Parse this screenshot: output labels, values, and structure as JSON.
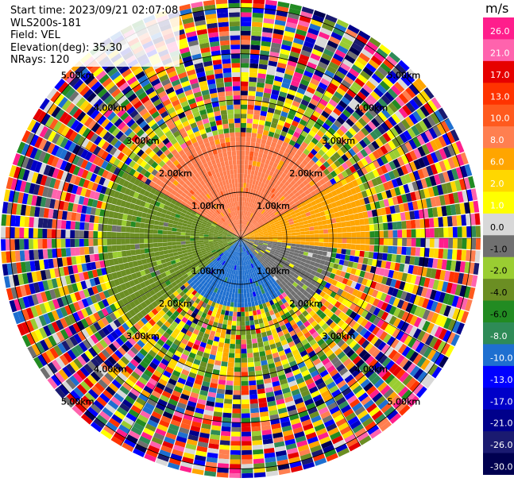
{
  "info": {
    "start_time": "Start time: 2023/09/21 02:07:08",
    "instrument": "WLS200s-181",
    "field": "Field: VEL",
    "elevation": "Elevation(deg): 35.30",
    "nrays": "NRays: 120"
  },
  "chart_data": {
    "type": "ppi",
    "field": "VEL",
    "units": "m/s",
    "nrays": 120,
    "range_ring_labels": [
      "1.00km",
      "2.00km",
      "3.00km",
      "4.00km",
      "5.00km"
    ],
    "range_rings_km": [
      1,
      2,
      3,
      4,
      5
    ],
    "max_range_km": 5.2,
    "colorbar": {
      "units": "m/s",
      "ticks": [
        "26.0",
        "21.0",
        "17.0",
        "13.0",
        "10.0",
        "8.0",
        "6.0",
        "2.0",
        "1.0",
        "0.0",
        "-1.0",
        "-2.0",
        "-4.0",
        "-6.0",
        "-8.0",
        "-10.0",
        "-13.0",
        "-17.0",
        "-21.0",
        "-26.0",
        "-30.0"
      ],
      "colors": [
        "#ff1e8c",
        "#ff63ad",
        "#e60000",
        "#ff3300",
        "#ff5a1e",
        "#ff7f50",
        "#ffa500",
        "#ffd700",
        "#ffff00",
        "#d8d8d8",
        "#707070",
        "#9acd32",
        "#6b8e23",
        "#228b22",
        "#2e8b57",
        "#1e6fd0",
        "#0000ff",
        "#0000c8",
        "#00008b",
        "#1a1a70",
        "#000050"
      ]
    },
    "sectors": [
      {
        "azimuth_from": 300,
        "azimuth_to": 60,
        "range_km": [
          0,
          2.3
        ],
        "velocity_ms": 8.0,
        "note": "near-field receding (orange/salmon)"
      },
      {
        "azimuth_from": 60,
        "azimuth_to": 95,
        "range_km": [
          0,
          2.8
        ],
        "velocity_ms": 6.0,
        "note": "orange"
      },
      {
        "azimuth_from": 95,
        "azimuth_to": 140,
        "range_km": [
          0,
          2.0
        ],
        "velocity_ms": -1.0,
        "note": "grey near zero"
      },
      {
        "azimuth_from": 140,
        "azimuth_to": 230,
        "range_km": [
          0,
          1.5
        ],
        "velocity_ms": -10.0,
        "note": "blue approaching"
      },
      {
        "azimuth_from": 230,
        "azimuth_to": 300,
        "range_km": [
          0,
          3.0
        ],
        "velocity_ms": -4.0,
        "note": "green approaching"
      },
      {
        "azimuth_from": 0,
        "azimuth_to": 360,
        "range_km": [
          2.3,
          5.2
        ],
        "velocity_ms": null,
        "note": "noisy / mixed outer region"
      }
    ]
  }
}
